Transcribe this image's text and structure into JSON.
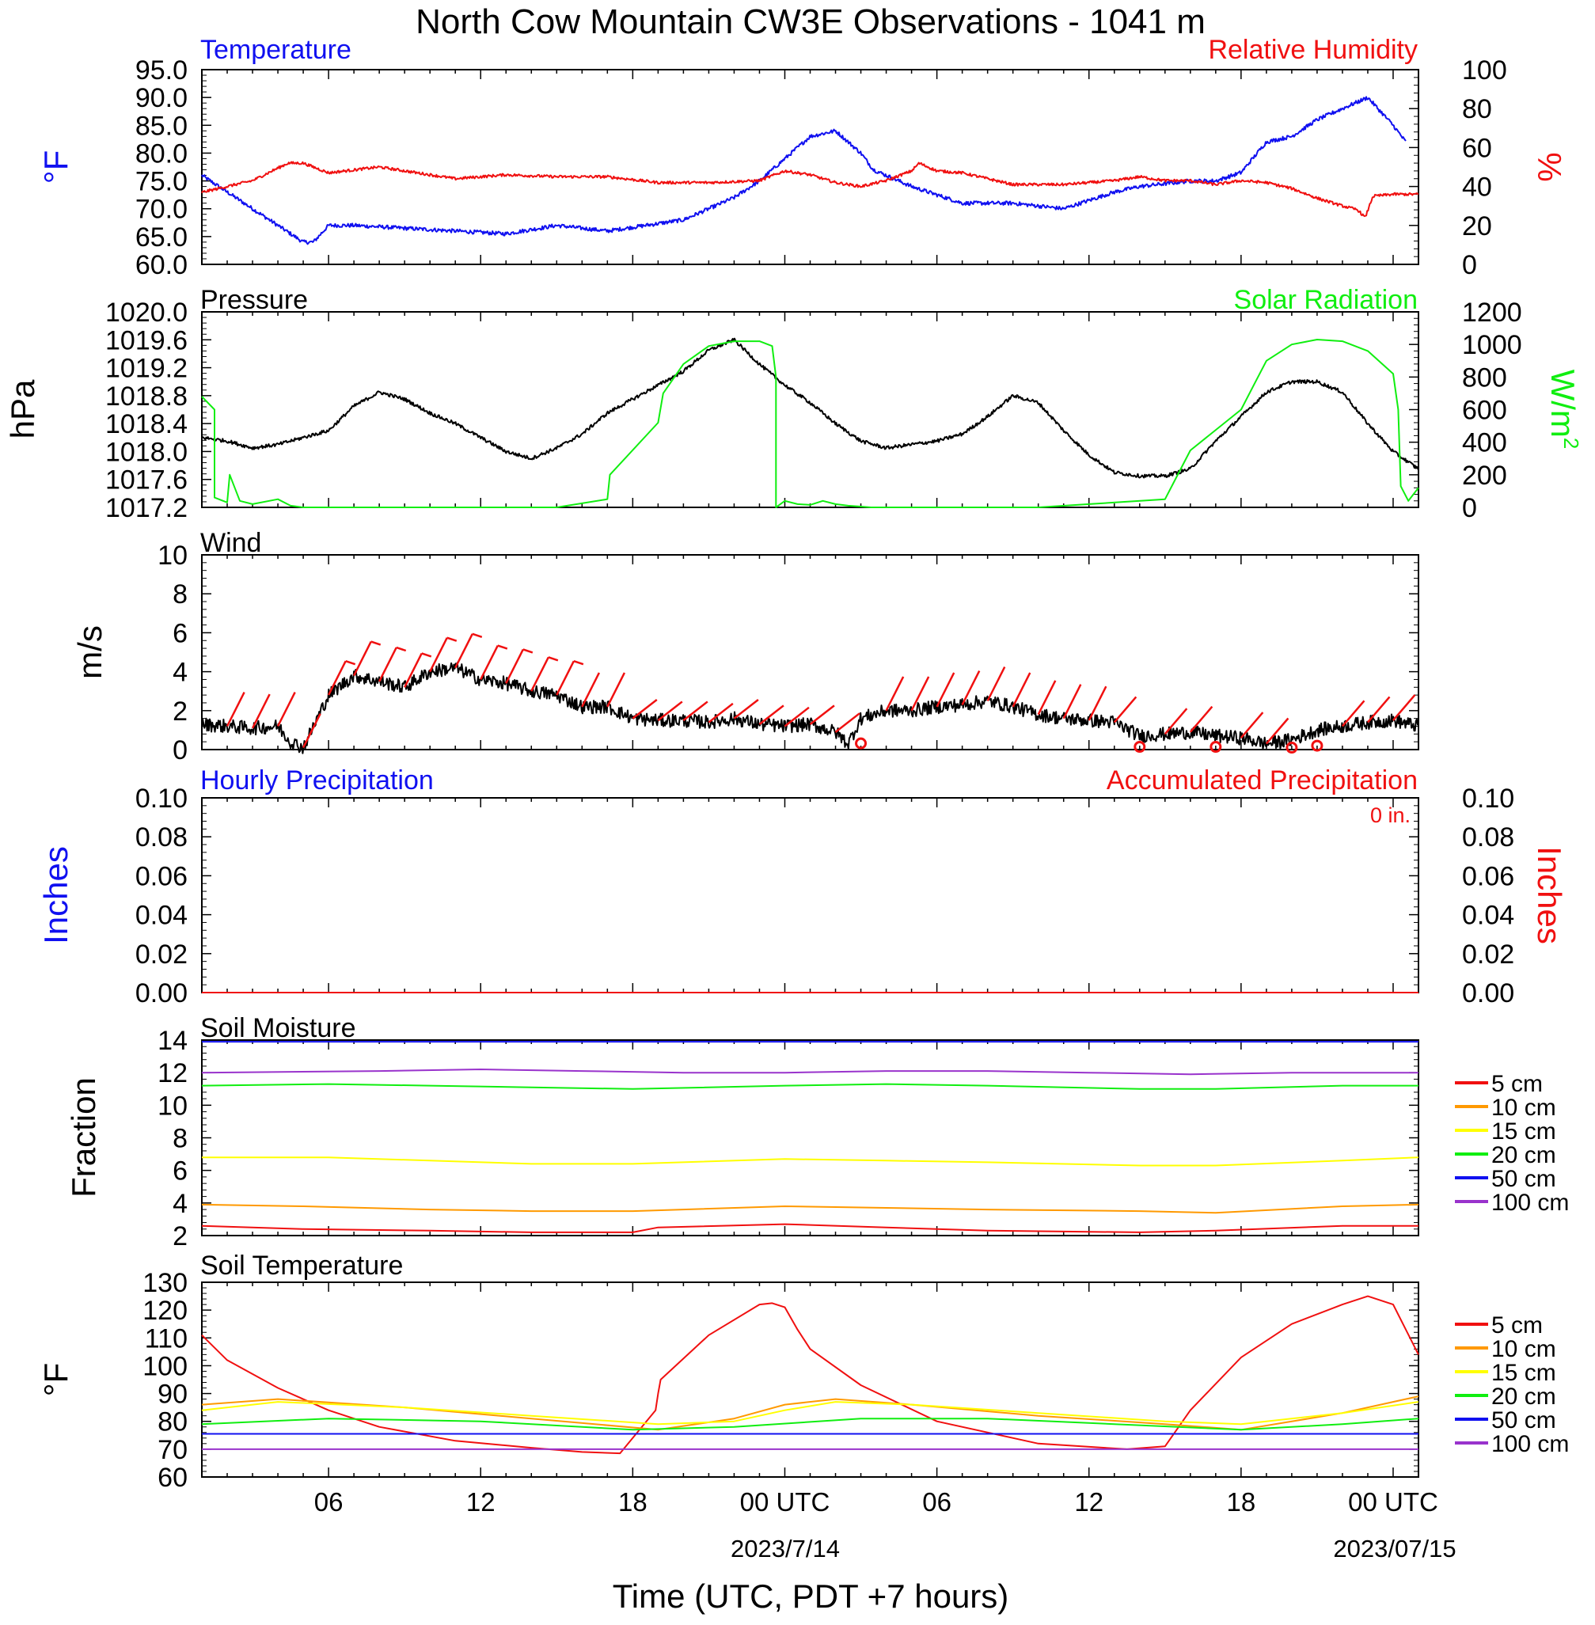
{
  "title": "North Cow Mountain CW3E Observations - 1041 m",
  "x_axis": {
    "label": "Time (UTC, PDT +7 hours)",
    "ticks": [
      "06",
      "12",
      "18",
      "00 UTC",
      "06",
      "12",
      "18",
      "00 UTC"
    ],
    "dates": [
      "2023/7/14",
      "2023/07/15"
    ],
    "range_hours": [
      -23,
      25
    ]
  },
  "colors": {
    "blue": "#1010f0",
    "red": "#f01010",
    "green": "#10ee10",
    "black": "#000000",
    "orange": "#ff9900",
    "yellow": "#ffff00",
    "purple": "#9933cc"
  },
  "chart_data": [
    {
      "id": "temp_rh",
      "type": "line",
      "left_title": "Temperature",
      "right_title": "Relative Humidity",
      "left_unit": "°F",
      "right_unit": "%",
      "left_ticks": [
        "95.0",
        "90.0",
        "85.0",
        "80.0",
        "75.0",
        "70.0",
        "65.0",
        "60.0"
      ],
      "right_ticks": [
        "100",
        "80",
        "60",
        "40",
        "20",
        "0"
      ],
      "left_range": [
        60,
        95
      ],
      "right_range": [
        0,
        100
      ],
      "series": [
        {
          "name": "Temperature",
          "axis": "left",
          "color": "#1010f0",
          "noise": 0.35,
          "x": [
            -23,
            -22,
            -21,
            -20,
            -19,
            -18.6,
            -18,
            -17,
            -15,
            -13,
            -11,
            -9,
            -7,
            -5.5,
            -4,
            -2,
            -1,
            0,
            1,
            2,
            3,
            3.5,
            5,
            7,
            9,
            11,
            13,
            14,
            15,
            16,
            17,
            18,
            19,
            20,
            21,
            22,
            23,
            24,
            24.5
          ],
          "y": [
            76,
            73,
            70,
            67,
            64,
            64,
            67,
            67,
            66.5,
            66,
            65.5,
            67,
            66,
            67,
            68,
            72,
            75,
            79,
            83,
            84,
            80,
            77,
            74,
            71,
            71,
            70,
            73,
            74,
            74.5,
            75,
            75,
            76.5,
            82,
            83,
            86,
            88,
            90,
            85,
            82
          ]
        },
        {
          "name": "Relative Humidity",
          "axis": "right",
          "color": "#f01010",
          "noise": 0.7,
          "x": [
            -23,
            -21,
            -19.6,
            -19,
            -18,
            -16,
            -15,
            -13,
            -11,
            -9,
            -7,
            -5,
            -3,
            -1,
            0,
            1,
            2,
            3,
            4,
            5,
            5.3,
            6,
            7,
            9,
            11,
            13,
            14,
            15,
            16,
            17,
            18,
            19,
            20,
            21,
            22,
            22.6,
            22.9,
            23.2,
            24,
            25
          ],
          "y": [
            37,
            43,
            52,
            52,
            47,
            50,
            48,
            44,
            46,
            45,
            45,
            42,
            42,
            43,
            48,
            46,
            42,
            40,
            43,
            48,
            52,
            48,
            47,
            41,
            41,
            43,
            45,
            43,
            43,
            41,
            43,
            42,
            39,
            34,
            30,
            28,
            24,
            35,
            36,
            36
          ]
        }
      ]
    },
    {
      "id": "pressure_solar",
      "type": "line",
      "left_title": "Pressure",
      "right_title": "Solar Radiation",
      "left_unit": "hPa",
      "right_unit": "W/m",
      "right_unit_sup": "2",
      "left_ticks": [
        "1020.0",
        "1019.6",
        "1019.2",
        "1018.8",
        "1018.4",
        "1018.0",
        "1017.6",
        "1017.2"
      ],
      "right_ticks": [
        "1200",
        "1000",
        "800",
        "600",
        "400",
        "200",
        "0"
      ],
      "left_range": [
        1017.2,
        1020.0
      ],
      "right_range": [
        0,
        1200
      ],
      "series": [
        {
          "name": "Pressure",
          "axis": "left",
          "color": "#000000",
          "noise": 0.025,
          "x": [
            -23,
            -22,
            -21,
            -20,
            -19,
            -18,
            -17,
            -16,
            -15,
            -14,
            -13,
            -12,
            -11,
            -10,
            -9,
            -8,
            -7,
            -6,
            -5,
            -4,
            -3,
            -2,
            -1,
            0,
            1,
            2,
            3,
            4,
            5,
            6,
            7,
            8,
            9,
            10,
            11,
            12,
            13,
            14,
            15,
            16,
            17,
            18,
            19,
            20,
            21,
            22,
            23,
            24,
            25
          ],
          "y": [
            1018.2,
            1018.15,
            1018.05,
            1018.1,
            1018.2,
            1018.3,
            1018.65,
            1018.85,
            1018.75,
            1018.55,
            1018.4,
            1018.2,
            1018.0,
            1017.9,
            1018.05,
            1018.25,
            1018.55,
            1018.75,
            1018.95,
            1019.15,
            1019.45,
            1019.6,
            1019.25,
            1018.95,
            1018.7,
            1018.4,
            1018.15,
            1018.05,
            1018.1,
            1018.15,
            1018.25,
            1018.5,
            1018.8,
            1018.7,
            1018.3,
            1017.95,
            1017.7,
            1017.65,
            1017.65,
            1017.75,
            1018.15,
            1018.5,
            1018.85,
            1019.0,
            1019.0,
            1018.85,
            1018.4,
            1018.0,
            1017.75
          ]
        },
        {
          "name": "Solar Radiation",
          "axis": "right",
          "color": "#10ee10",
          "noise": 0,
          "x": [
            -23,
            -22.5,
            -22.5,
            -22,
            -21.9,
            -21.5,
            -21,
            -20,
            -19.5,
            -19,
            -18.5,
            -15,
            -12,
            -9,
            -7,
            -6.9,
            -5,
            -4.8,
            -4,
            -3,
            -2,
            -1,
            -0.5,
            -0.35,
            -0.35,
            0,
            0.5,
            1,
            1.5,
            2,
            2.5,
            3,
            3.4,
            10,
            15,
            16,
            18,
            18.5,
            19,
            20,
            21,
            22,
            23,
            24,
            24.2,
            24.3,
            24.6,
            25
          ],
          "y": [
            680,
            600,
            60,
            30,
            200,
            40,
            20,
            50,
            10,
            0,
            0,
            0,
            0,
            0,
            50,
            200,
            520,
            700,
            880,
            990,
            1020,
            1020,
            990,
            800,
            0,
            40,
            20,
            15,
            40,
            20,
            10,
            5,
            0,
            0,
            50,
            350,
            600,
            750,
            900,
            1000,
            1030,
            1020,
            960,
            820,
            600,
            130,
            40,
            120
          ]
        }
      ]
    },
    {
      "id": "wind",
      "type": "line",
      "left_title": "Wind",
      "left_unit": "m/s",
      "left_ticks": [
        "10",
        "8",
        "6",
        "4",
        "2",
        "0"
      ],
      "left_range": [
        0,
        10
      ],
      "series": [
        {
          "name": "Wind speed",
          "axis": "left",
          "color": "#000000",
          "noise": 0.35,
          "x": [
            -23,
            -22,
            -21,
            -20,
            -19.5,
            -19,
            -18,
            -17,
            -16,
            -15,
            -14,
            -13,
            -12,
            -11,
            -10,
            -9,
            -8,
            -7,
            -6,
            -5,
            -4,
            -3,
            -2,
            -1,
            0,
            1,
            2,
            2.5,
            3,
            4,
            5,
            6,
            7,
            8,
            9,
            10,
            11,
            12,
            13,
            14,
            15,
            16,
            17,
            18,
            19,
            20,
            21,
            22,
            23,
            24,
            25
          ],
          "y": [
            1.3,
            1.2,
            1.1,
            1.2,
            0.4,
            0.1,
            2.8,
            3.8,
            3.5,
            3.2,
            4.0,
            4.2,
            3.6,
            3.4,
            3.0,
            2.8,
            2.2,
            2.2,
            1.6,
            1.5,
            1.5,
            1.4,
            1.6,
            1.3,
            1.2,
            1.3,
            0.9,
            0.3,
            1.6,
            2.0,
            2.0,
            2.2,
            2.3,
            2.5,
            2.2,
            1.8,
            1.6,
            1.5,
            1.4,
            0.7,
            0.8,
            0.9,
            0.7,
            0.6,
            0.3,
            0.5,
            1.0,
            1.2,
            1.4,
            1.5,
            1.2
          ]
        }
      ]
    },
    {
      "id": "precip",
      "type": "line",
      "left_title": "Hourly Precipitation",
      "right_title": "Accumulated Precipitation",
      "right_note": "0 in.",
      "left_unit": "Inches",
      "right_unit": "Inches",
      "left_ticks": [
        "0.10",
        "0.08",
        "0.06",
        "0.04",
        "0.02",
        "0.00"
      ],
      "right_ticks": [
        "0.10",
        "0.08",
        "0.06",
        "0.04",
        "0.02",
        "0.00"
      ],
      "left_range": [
        0,
        0.1
      ],
      "right_range": [
        0,
        0.1
      ],
      "series": [
        {
          "name": "Hourly Precipitation",
          "axis": "left",
          "color": "#1010f0",
          "x": [
            -23,
            25
          ],
          "y": [
            0,
            0
          ]
        },
        {
          "name": "Accumulated Precipitation",
          "axis": "right",
          "color": "#f01010",
          "x": [
            -23,
            25
          ],
          "y": [
            0,
            0
          ]
        }
      ]
    },
    {
      "id": "soil_moisture",
      "type": "line",
      "left_title": "Soil Moisture",
      "left_unit": "Fraction",
      "left_ticks": [
        "14",
        "12",
        "10",
        "8",
        "6",
        "4",
        "2"
      ],
      "left_range": [
        2,
        14
      ],
      "legend": [
        "5 cm",
        "10 cm",
        "15 cm",
        "20 cm",
        "50 cm",
        "100 cm"
      ],
      "series": [
        {
          "name": "5 cm",
          "color": "#f01010",
          "x": [
            -23,
            -19,
            -14,
            -10,
            -6,
            -5,
            0,
            4,
            8,
            14,
            17,
            22,
            25
          ],
          "y": [
            2.6,
            2.4,
            2.3,
            2.2,
            2.2,
            2.5,
            2.7,
            2.5,
            2.3,
            2.2,
            2.3,
            2.6,
            2.6
          ]
        },
        {
          "name": "10 cm",
          "color": "#ff9900",
          "x": [
            -23,
            -19,
            -14,
            -10,
            -6,
            0,
            4,
            8,
            14,
            17,
            22,
            25
          ],
          "y": [
            3.9,
            3.8,
            3.6,
            3.5,
            3.5,
            3.8,
            3.7,
            3.6,
            3.5,
            3.4,
            3.8,
            3.9
          ]
        },
        {
          "name": "15 cm",
          "color": "#ffff00",
          "x": [
            -23,
            -18,
            -14,
            -10,
            -6,
            0,
            4,
            8,
            14,
            17,
            22,
            25
          ],
          "y": [
            6.8,
            6.8,
            6.6,
            6.4,
            6.4,
            6.7,
            6.6,
            6.5,
            6.3,
            6.3,
            6.6,
            6.8
          ]
        },
        {
          "name": "20 cm",
          "color": "#10ee10",
          "x": [
            -23,
            -18,
            -14,
            -10,
            -6,
            0,
            4,
            8,
            14,
            17,
            22,
            25
          ],
          "y": [
            11.2,
            11.3,
            11.2,
            11.1,
            11.0,
            11.2,
            11.3,
            11.2,
            11.0,
            11.0,
            11.2,
            11.2
          ]
        },
        {
          "name": "50 cm",
          "color": "#1010f0",
          "x": [
            -23,
            25
          ],
          "y": [
            13.9,
            13.9
          ]
        },
        {
          "name": "100 cm",
          "color": "#9933cc",
          "x": [
            -23,
            -16,
            -12,
            -8,
            -4,
            0,
            4,
            8,
            12,
            16,
            20,
            25
          ],
          "y": [
            12.0,
            12.1,
            12.2,
            12.1,
            12.0,
            12.0,
            12.1,
            12.1,
            12.0,
            11.9,
            12.0,
            12.0
          ]
        }
      ]
    },
    {
      "id": "soil_temperature",
      "type": "line",
      "left_title": "Soil Temperature",
      "left_unit": "°F",
      "left_ticks": [
        "130",
        "120",
        "110",
        "100",
        "90",
        "80",
        "70",
        "60"
      ],
      "left_range": [
        60,
        130
      ],
      "legend": [
        "5 cm",
        "10 cm",
        "15 cm",
        "20 cm",
        "50 cm",
        "100 cm"
      ],
      "series": [
        {
          "name": "5 cm",
          "color": "#f01010",
          "x": [
            -23,
            -22,
            -20,
            -18,
            -16,
            -13,
            -10,
            -8,
            -6.5,
            -5.1,
            -5,
            -4.9,
            -3,
            -1,
            -0.5,
            0,
            0.5,
            1,
            3,
            6,
            10,
            13.5,
            15,
            16,
            18,
            20,
            22,
            23,
            24,
            25
          ],
          "y": [
            111,
            102,
            92,
            84,
            78,
            73,
            70.5,
            69,
            68.5,
            84,
            90,
            95,
            111,
            122,
            122.5,
            121,
            113,
            106,
            93,
            80,
            72,
            70,
            71,
            84,
            103,
            115,
            122,
            125,
            122,
            104
          ]
        },
        {
          "name": "10 cm",
          "color": "#ff9900",
          "x": [
            -23,
            -20,
            -15,
            -10,
            -5,
            -2,
            0,
            2,
            5,
            10,
            15,
            18,
            22,
            25
          ],
          "y": [
            86,
            88,
            85,
            81,
            77,
            81,
            86,
            88,
            86,
            82,
            79,
            77,
            83,
            89
          ]
        },
        {
          "name": "15 cm",
          "color": "#ffff00",
          "x": [
            -23,
            -20,
            -15,
            -10,
            -5,
            -2,
            0,
            2,
            5,
            10,
            15,
            18,
            22,
            25
          ],
          "y": [
            84,
            87,
            85,
            82,
            79,
            80,
            84,
            87,
            86,
            83,
            80,
            79,
            83,
            87
          ]
        },
        {
          "name": "20 cm",
          "color": "#10ee10",
          "x": [
            -23,
            -18,
            -12,
            -6,
            -2,
            3,
            8,
            13,
            18,
            22,
            25
          ],
          "y": [
            79,
            81,
            80,
            77,
            78,
            81,
            81,
            79,
            77,
            79,
            81
          ]
        },
        {
          "name": "50 cm",
          "color": "#1010f0",
          "x": [
            -23,
            25
          ],
          "y": [
            75.5,
            75.5
          ]
        },
        {
          "name": "100 cm",
          "color": "#9933cc",
          "x": [
            -23,
            25
          ],
          "y": [
            70,
            70
          ]
        }
      ]
    }
  ],
  "wind_barbs": {
    "color": "#f01010",
    "calm_hours": [
      3,
      14,
      17,
      20,
      21
    ]
  }
}
